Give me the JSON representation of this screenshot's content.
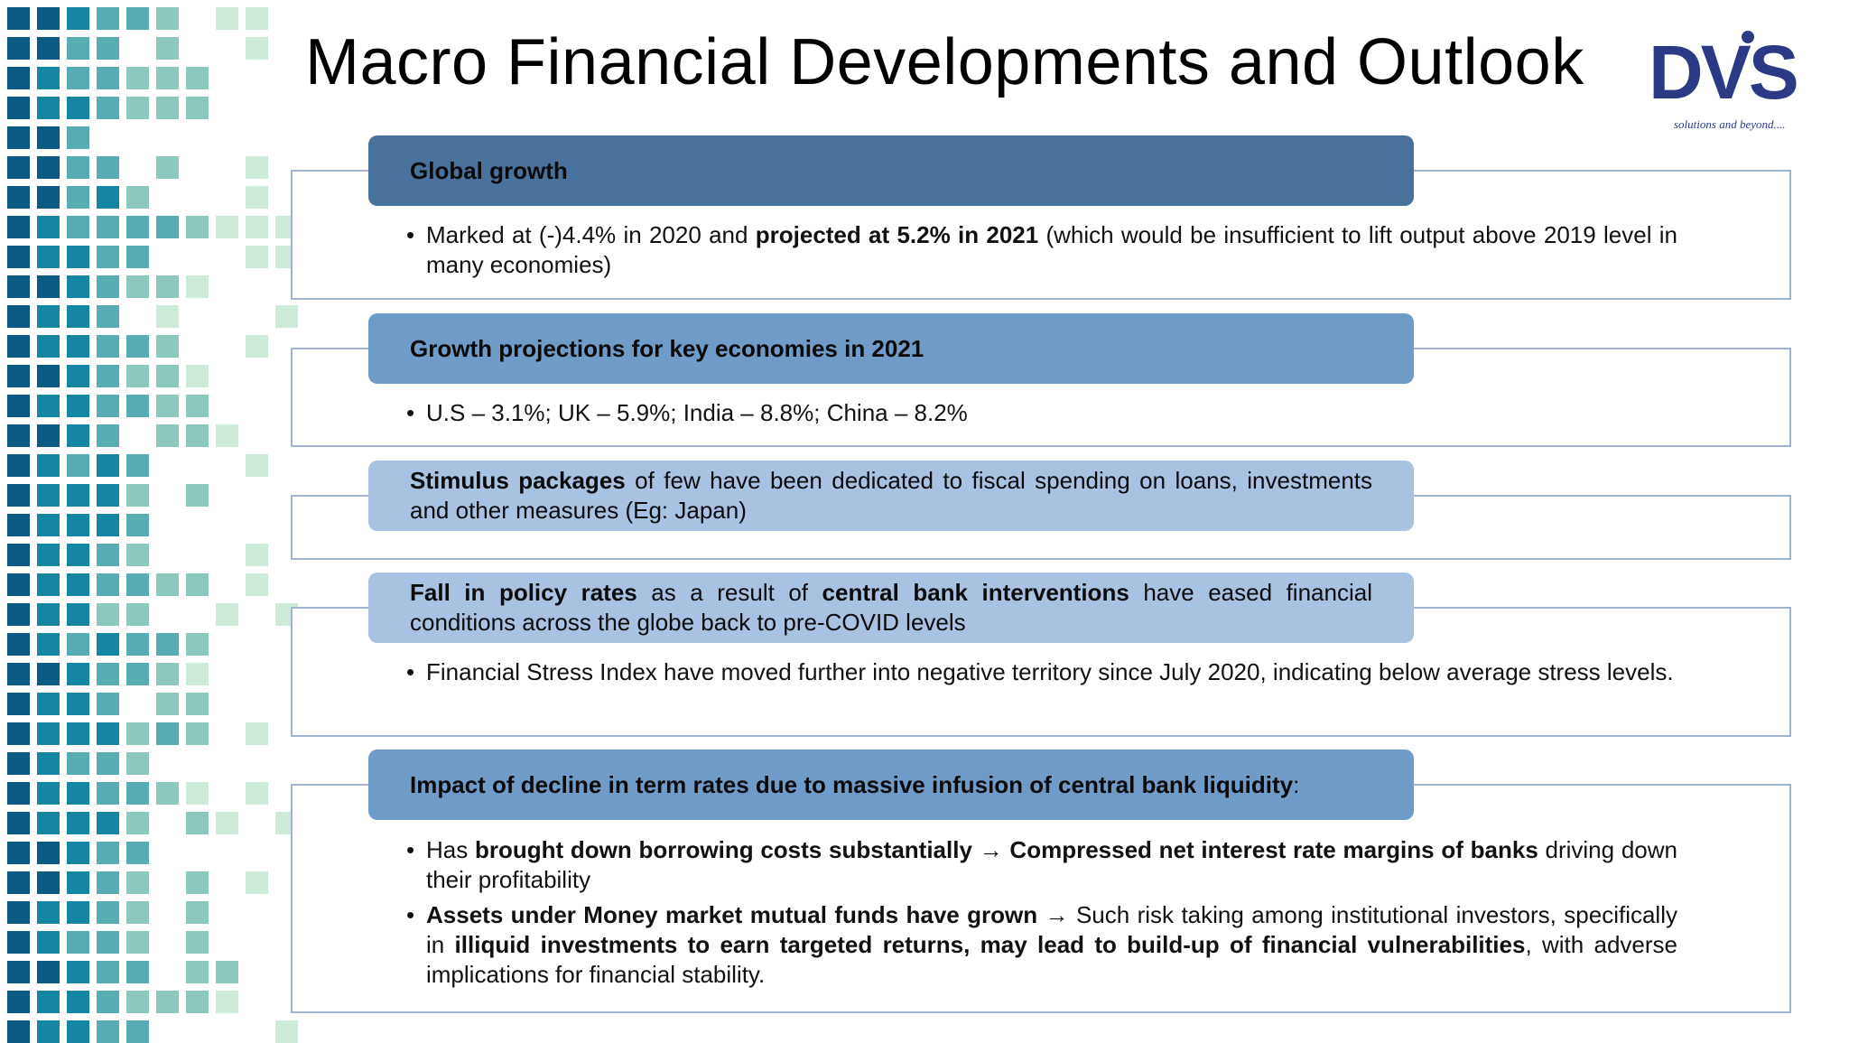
{
  "title": "Macro Financial Developments and Outlook",
  "logo": {
    "text": "DVS",
    "tagline": "solutions and beyond...."
  },
  "colors": {
    "bar_dark": "#48719c",
    "bar_mid": "#6f9bc9",
    "bar_light": "#a9c2e2",
    "box_border": "#9fb2cf",
    "logo": "#2c3a86"
  },
  "sections": [
    {
      "heading": "Global growth",
      "bullets": [
        {
          "parts": [
            "Marked at (-)4.4% in 2020 and ",
            "projected at 5.2% in 2021",
            " (which would be insufficient to lift output above 2019 level in  many economies)"
          ]
        }
      ]
    },
    {
      "heading": "Growth projections for key economies in 2021",
      "bullets": [
        {
          "parts": [
            "U.S – 3.1%; UK – 5.9%; India – 8.8%; China – 8.2%"
          ]
        }
      ]
    },
    {
      "heading_parts": [
        "Stimulus packages",
        " of few have been dedicated to fiscal spending on loans, investments and other measures (Eg: Japan)"
      ],
      "bullets": []
    },
    {
      "heading_parts": [
        "Fall in policy rates",
        " as a result of ",
        "central bank interventions",
        " have eased financial conditions across the globe back to pre-COVID levels"
      ],
      "bullets": [
        {
          "parts": [
            "Financial Stress Index have moved further into negative territory since July 2020, indicating below average stress levels."
          ]
        }
      ]
    },
    {
      "heading_parts": [
        "Impact of decline in term rates due to massive infusion of central bank liquidity",
        ":"
      ],
      "bullets": [
        {
          "parts": [
            "Has ",
            "brought down borrowing costs substantially",
            " → ",
            "Compressed net interest rate margins of banks",
            " driving down their profitability"
          ]
        },
        {
          "parts": [
            "Assets under Money market mutual funds have grown",
            " → Such risk taking among institutional investors, specifically in ",
            "illiquid investments to earn targeted returns, may lead to build-up of financial vulnerabilities",
            ", with adverse implications for financial stability."
          ]
        }
      ]
    }
  ]
}
